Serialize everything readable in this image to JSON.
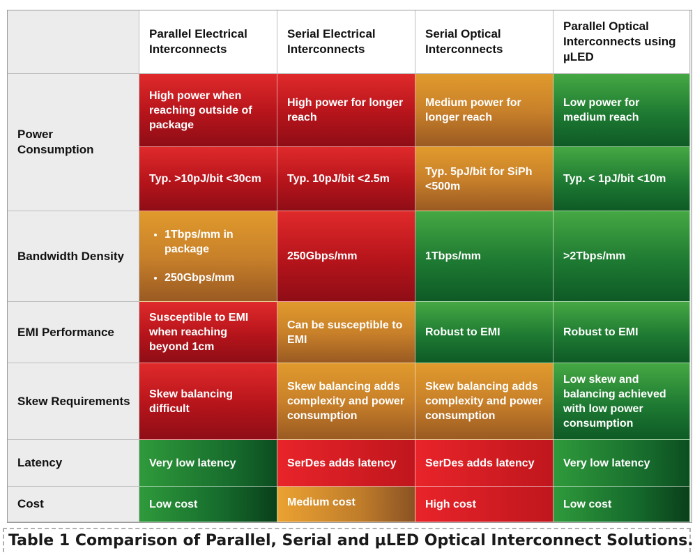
{
  "columns": [
    "",
    "Parallel Electrical Interconnects",
    "Serial Electrical Interconnects",
    "Serial Optical Interconnects",
    "Parallel  Optical Interconnects using µLED"
  ],
  "rows": {
    "power": {
      "label": "Power Consumption",
      "a": [
        "High power when reaching outside of package",
        "High power for longer reach",
        "Medium power for longer reach",
        "Low power for medium reach"
      ],
      "b": [
        "Typ. >10pJ/bit <30cm",
        "Typ. 10pJ/bit <2.5m",
        "Typ. 5pJ/bit for SiPh <500m",
        "Typ. < 1pJ/bit <10m"
      ]
    },
    "bandwidth": {
      "label": "Bandwidth Density",
      "bullets": [
        "1Tbps/mm in package",
        "250Gbps/mm"
      ],
      "cells": [
        "250Gbps/mm",
        "1Tbps/mm",
        ">2Tbps/mm"
      ]
    },
    "emi": {
      "label": "EMI Performance",
      "cells": [
        "Susceptible to EMI when reaching beyond 1cm",
        "Can be susceptible to EMI",
        "Robust to EMI",
        "Robust to EMI"
      ]
    },
    "skew": {
      "label": "Skew Requirements",
      "cells": [
        "Skew balancing difficult",
        "Skew balancing adds complexity and power consumption",
        "Skew balancing adds complexity and power consumption",
        "Low skew and balancing achieved with low power consumption"
      ]
    },
    "latency": {
      "label": "Latency",
      "cells": [
        "Very low latency",
        "SerDes adds latency",
        "SerDes adds latency",
        "Very low latency"
      ]
    },
    "cost": {
      "label": "Cost",
      "cells": [
        "Low cost",
        "Medium cost",
        "High cost",
        "Low cost"
      ]
    }
  },
  "caption": "Table 1 Comparison of Parallel, Serial and µLED Optical Interconnect Solutions.",
  "colors": {
    "red": "#c0161d",
    "amber": "#d08a2c",
    "green": "#1e7a32"
  }
}
